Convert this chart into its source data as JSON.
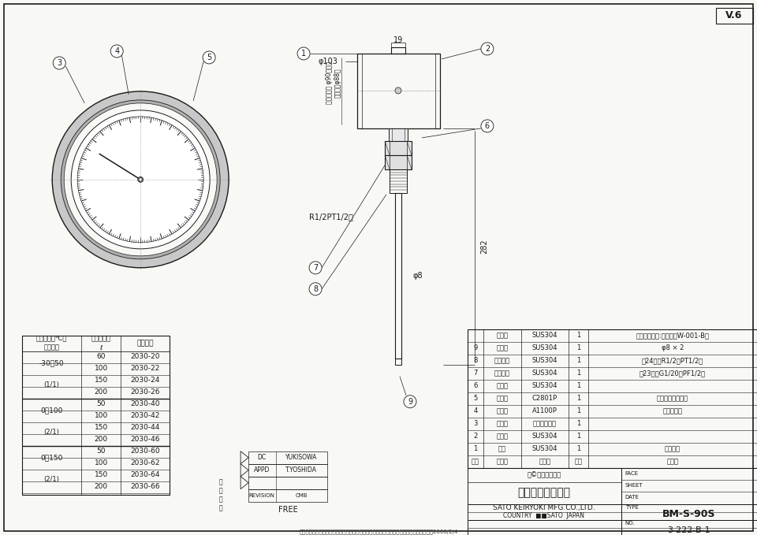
{
  "bg_color": "#ffffff",
  "paper_color": "#f8f8f5",
  "line_color": "#1a1a1a",
  "version": "V.6",
  "parts_table": {
    "rows_ordered_top_to_bottom": [
      [
        "",
        "保護管",
        "SUS304",
        "1",
        "（オプション:図面番号W-001-B）"
      ],
      [
        "9",
        "感温部",
        "SUS304",
        "1",
        "φ8 × 2"
      ],
      [
        "8",
        "取付ネジ",
        "SUS304",
        "1",
        "帣24六角R1/2（PT1/2）"
      ],
      [
        "7",
        "締付ネジ",
        "SUS304",
        "1",
        "帣23六角G1/20（PF1/2）"
      ],
      [
        "6",
        "元　軸",
        "SUS304",
        "1",
        ""
      ],
      [
        "5",
        "指　針",
        "C2801P",
        "1",
        "黒色　先端部橙色"
      ],
      [
        "4",
        "目盛板",
        "A1100P",
        "1",
        "白地黒文字"
      ],
      [
        "3",
        "透明板",
        "普通板ガラス",
        "1",
        ""
      ],
      [
        "2",
        "ケース",
        "SUS304",
        "1",
        ""
      ],
      [
        "1",
        "フタ",
        "SUS304",
        "1",
        "バフ研磨"
      ],
      [
        "番号",
        "品　名",
        "材　質",
        "個数",
        "記　事"
      ]
    ]
  },
  "spec_table": {
    "groups": [
      {
        "range": "-30～50",
        "grade": "(1/1)",
        "rows": [
          [
            "60",
            "2030-20"
          ],
          [
            "100",
            "2030-22"
          ],
          [
            "150",
            "2030-24"
          ],
          [
            "200",
            "2030-26"
          ]
        ]
      },
      {
        "range": "0～100",
        "grade": "(2/1)",
        "rows": [
          [
            "50",
            "2030-40"
          ],
          [
            "100",
            "2030-42"
          ],
          [
            "150",
            "2030-44"
          ],
          [
            "200",
            "2030-46"
          ]
        ]
      },
      {
        "range": "0～150",
        "grade": "(2/1)",
        "rows": [
          [
            "50",
            "2030-60"
          ],
          [
            "100",
            "2030-62"
          ],
          [
            "150",
            "2030-64"
          ],
          [
            "200",
            "2030-66"
          ]
        ]
      }
    ]
  }
}
